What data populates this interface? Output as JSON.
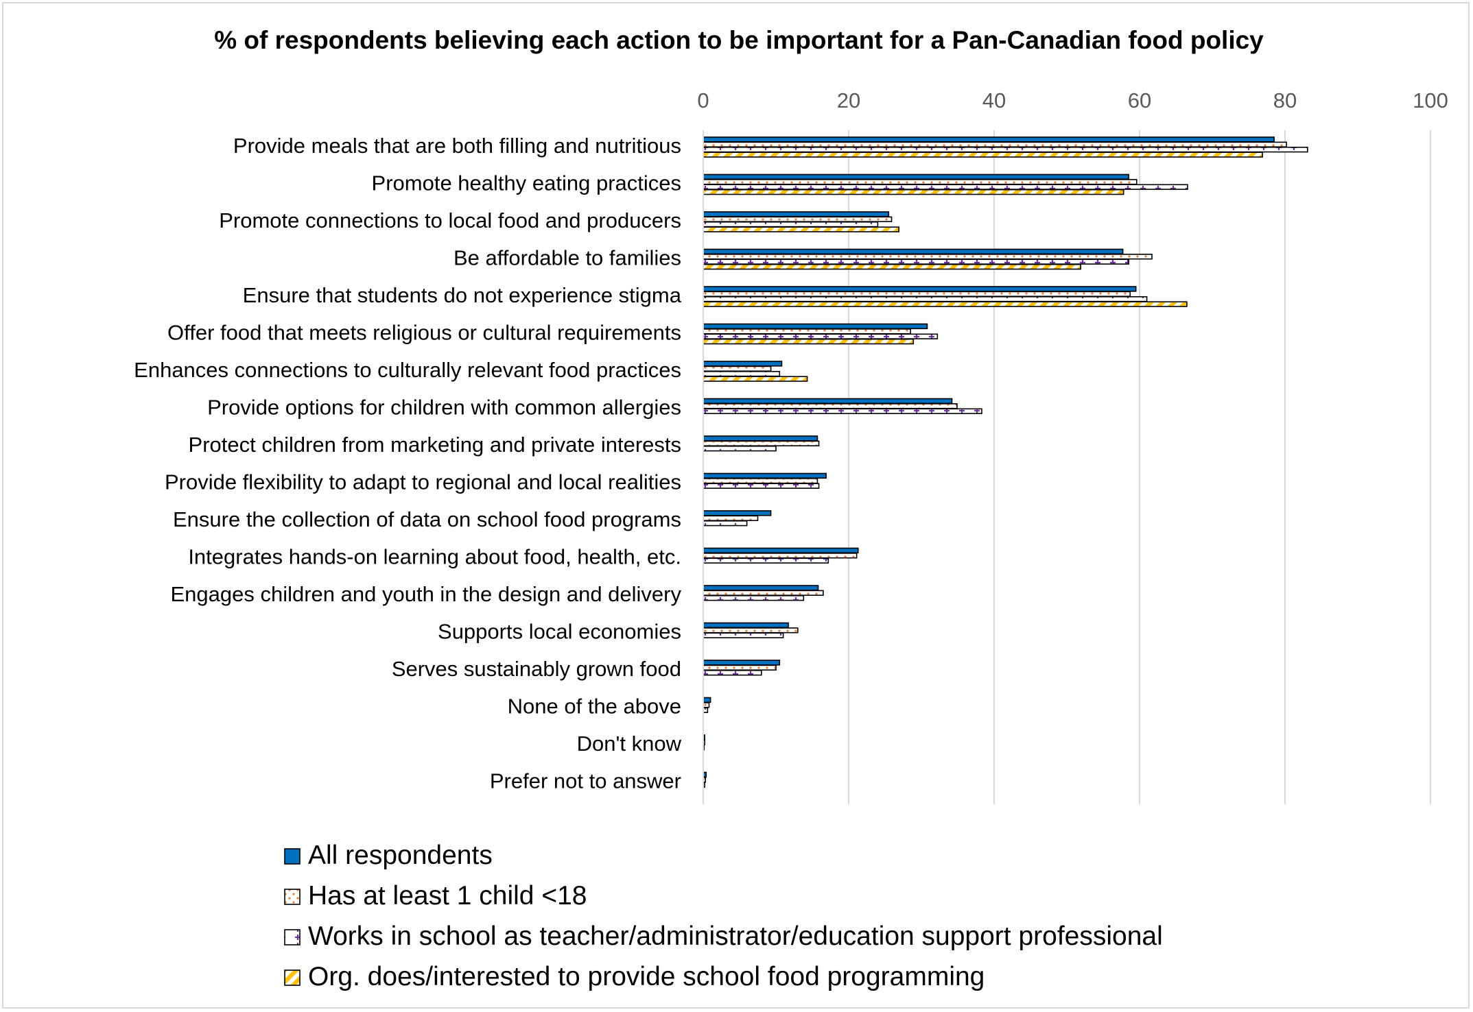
{
  "chart_data": {
    "type": "bar",
    "orientation": "horizontal",
    "title": "% of respondents believing each action to be important for a Pan-Canadian food policy",
    "xlim": [
      0,
      100
    ],
    "xticks": [
      0,
      20,
      40,
      60,
      80,
      100
    ],
    "x_axis_position": "top",
    "grid": true,
    "legend_position": "bottom",
    "categories": [
      "Provide meals that are both filling and nutritious",
      "Promote healthy eating practices",
      "Promote connections to local food and producers",
      "Be affordable to families",
      "Ensure that students do not experience stigma",
      "Offer food that meets religious or cultural requirements",
      "Enhances connections to culturally relevant food practices",
      "Provide options for children with common allergies",
      "Protect children from marketing and private interests",
      "Provide flexibility to adapt to regional and local realities",
      "Ensure the collection of data on school food programs",
      "Integrates hands-on learning about food, health, etc.",
      "Engages children and youth in the design and delivery",
      "Supports local economies",
      "Serves sustainably grown food",
      "None of the above",
      "Don't know",
      "Prefer not to answer"
    ],
    "series": [
      {
        "name": "All respondents",
        "color": "#0070c0",
        "pattern": "solid",
        "values": [
          78.5,
          58.5,
          25.5,
          57.7,
          59.5,
          30.8,
          10.8,
          34.2,
          15.7,
          16.9,
          9.3,
          21.3,
          15.8,
          11.7,
          10.5,
          1.0,
          0.2,
          0.4
        ]
      },
      {
        "name": "Has at least 1 child <18",
        "color": "#ed7d31",
        "pattern": "dots",
        "values": [
          80.2,
          59.6,
          25.9,
          61.7,
          58.7,
          28.5,
          9.3,
          34.9,
          15.9,
          15.7,
          7.5,
          21.1,
          16.5,
          13.0,
          10.0,
          0.8,
          0.2,
          0.3
        ]
      },
      {
        "name": "Works in school as teacher/administrator/education support professional",
        "color": "#7030a0",
        "pattern": "plus",
        "values": [
          83.1,
          66.6,
          24.0,
          58.5,
          61.0,
          32.2,
          10.5,
          38.3,
          10.0,
          15.9,
          6.0,
          17.2,
          13.8,
          11.0,
          8.0,
          0.6,
          0.1,
          0.2
        ]
      },
      {
        "name": "Org. does/interested to provide school food programming",
        "color": "#ffc000",
        "pattern": "diagonal",
        "values": [
          76.9,
          57.8,
          26.9,
          51.9,
          66.5,
          28.9,
          14.3,
          0,
          0,
          0,
          0,
          0,
          0,
          0,
          0,
          0,
          0,
          0
        ]
      }
    ]
  }
}
